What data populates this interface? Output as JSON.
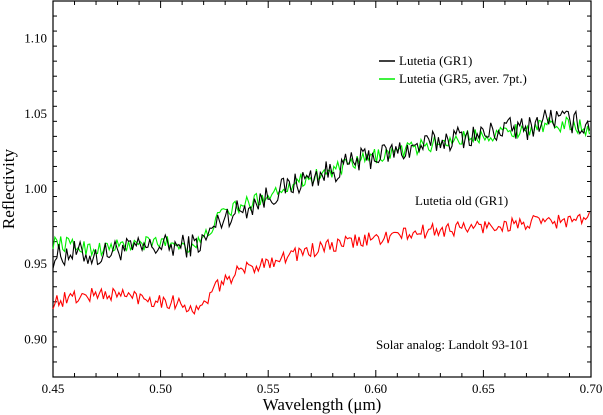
{
  "chart_data": {
    "type": "line",
    "xlabel": "Wavelength (μm)",
    "ylabel": "Reflectivity",
    "xlim": [
      0.45,
      0.7
    ],
    "ylim": [
      0.875,
      1.125
    ],
    "xticks": [
      {
        "value": 0.45,
        "label": "0.45"
      },
      {
        "value": 0.5,
        "label": "0.50"
      },
      {
        "value": 0.55,
        "label": "0.55"
      },
      {
        "value": 0.6,
        "label": "0.60"
      },
      {
        "value": 0.65,
        "label": "0.65"
      },
      {
        "value": 0.7,
        "label": "0.70"
      }
    ],
    "yticks": [
      {
        "value": 0.9,
        "label": "0.90"
      },
      {
        "value": 0.95,
        "label": "0.95"
      },
      {
        "value": 1.0,
        "label": "1.00"
      },
      {
        "value": 1.05,
        "label": "1.05"
      },
      {
        "value": 1.1,
        "label": "1.10"
      }
    ],
    "grid": false,
    "legend_position": "top-right",
    "series": [
      {
        "name": "Lutetia (GR1)",
        "color": "#000000",
        "x": [
          0.45,
          0.46,
          0.47,
          0.48,
          0.49,
          0.5,
          0.51,
          0.515,
          0.52,
          0.525,
          0.53,
          0.54,
          0.55,
          0.56,
          0.57,
          0.58,
          0.59,
          0.6,
          0.61,
          0.62,
          0.63,
          0.64,
          0.65,
          0.66,
          0.67,
          0.68,
          0.69,
          0.7
        ],
        "y": [
          0.955,
          0.958,
          0.955,
          0.96,
          0.96,
          0.962,
          0.962,
          0.963,
          0.965,
          0.975,
          0.982,
          0.988,
          0.995,
          1.002,
          1.008,
          1.012,
          1.018,
          1.022,
          1.025,
          1.028,
          1.032,
          1.035,
          1.036,
          1.04,
          1.04,
          1.048,
          1.045,
          1.042
        ]
      },
      {
        "name": "Lutetia (GR5, aver. 7pt.)",
        "color": "#00ee00",
        "x": [
          0.45,
          0.46,
          0.47,
          0.48,
          0.49,
          0.5,
          0.51,
          0.515,
          0.52,
          0.525,
          0.53,
          0.54,
          0.55,
          0.56,
          0.57,
          0.58,
          0.59,
          0.6,
          0.61,
          0.62,
          0.63,
          0.64,
          0.65,
          0.66,
          0.67,
          0.68,
          0.69,
          0.7
        ],
        "y": [
          0.965,
          0.962,
          0.96,
          0.962,
          0.963,
          0.965,
          0.963,
          0.962,
          0.966,
          0.978,
          0.985,
          0.99,
          0.996,
          1.003,
          1.008,
          1.012,
          1.017,
          1.022,
          1.025,
          1.028,
          1.031,
          1.034,
          1.036,
          1.038,
          1.04,
          1.042,
          1.043,
          1.04
        ]
      },
      {
        "name": "Lutetia old (GR1)",
        "color": "#ff0000",
        "x": [
          0.45,
          0.46,
          0.47,
          0.48,
          0.49,
          0.5,
          0.51,
          0.515,
          0.518,
          0.522,
          0.53,
          0.54,
          0.55,
          0.56,
          0.57,
          0.58,
          0.59,
          0.6,
          0.61,
          0.62,
          0.63,
          0.64,
          0.65,
          0.66,
          0.67,
          0.68,
          0.69,
          0.7
        ],
        "y": [
          0.925,
          0.928,
          0.93,
          0.93,
          0.928,
          0.926,
          0.924,
          0.92,
          0.918,
          0.928,
          0.94,
          0.947,
          0.952,
          0.956,
          0.959,
          0.962,
          0.965,
          0.967,
          0.969,
          0.971,
          0.973,
          0.974,
          0.975,
          0.976,
          0.977,
          0.978,
          0.979,
          0.98
        ]
      }
    ],
    "legend": [
      {
        "label": "Lutetia (GR1)",
        "color": "#000000"
      },
      {
        "label": "Lutetia (GR5, aver. 7pt.)",
        "color": "#00ee00"
      }
    ],
    "annotations": [
      {
        "id": "old",
        "text": "Lutetia old (GR1)"
      },
      {
        "id": "solar",
        "text": "Solar analog: Landolt 93-101"
      }
    ]
  }
}
